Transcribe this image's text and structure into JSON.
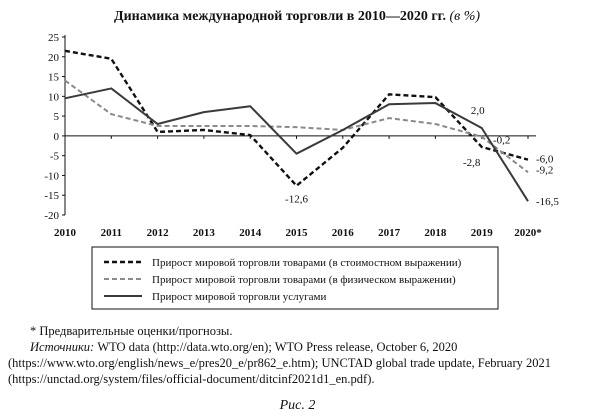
{
  "chart_data": {
    "type": "line",
    "title": "Динамика международной торговли в 2010—2020 гг.",
    "title_unit": "(в %)",
    "categories": [
      "2010",
      "2011",
      "2012",
      "2013",
      "2014",
      "2015",
      "2016",
      "2017",
      "2018",
      "2019",
      "2020*"
    ],
    "ylim": [
      -20,
      25
    ],
    "yticks": [
      25,
      20,
      15,
      10,
      5,
      0,
      -5,
      -10,
      -15,
      -20
    ],
    "grid": false,
    "legend_position": "bottom",
    "series": [
      {
        "name": "Прирост мировой торговли товарами (в стоимостном выражении)",
        "style": "dashed-bold",
        "color": "#111111",
        "values": [
          21.5,
          19.5,
          1.0,
          1.5,
          0.2,
          -12.6,
          -3.0,
          10.5,
          9.8,
          -2.8,
          -6.0
        ]
      },
      {
        "name": "Прирост мировой торговли товарами (в физическом выражении)",
        "style": "dashed-gray",
        "color": "#8a8a8a",
        "values": [
          14.0,
          5.5,
          2.5,
          2.5,
          2.5,
          2.2,
          1.5,
          4.5,
          3.0,
          -0.2,
          -9.2
        ]
      },
      {
        "name": "Прирост мировой торговли услугами",
        "style": "solid",
        "color": "#3a3a3a",
        "values": [
          9.5,
          12.0,
          3.0,
          6.0,
          7.5,
          -4.5,
          1.5,
          8.0,
          8.3,
          2.0,
          -16.5
        ]
      }
    ],
    "annotations": [
      {
        "text": "-12,6"
      },
      {
        "text": "2,0"
      },
      {
        "text": "-0,2"
      },
      {
        "text": "-2,8"
      },
      {
        "text": "-6,0"
      },
      {
        "text": "-9,2"
      },
      {
        "text": "-16,5"
      }
    ]
  },
  "notes": {
    "footnote": "* Предварительные оценки/прогнозы.",
    "sources_label": "Источники:",
    "sources_text": "WTO data (http://data.wto.org/en); WTO Press release, October 6, 2020 (https://www.wto.org/english/news_e/pres20_e/pr862_e.htm); UNCTAD global trade update, February 2021 (https://unctad.org/system/files/official-document/ditcinf2021d1_en.pdf)."
  },
  "caption": "Рис. 2"
}
